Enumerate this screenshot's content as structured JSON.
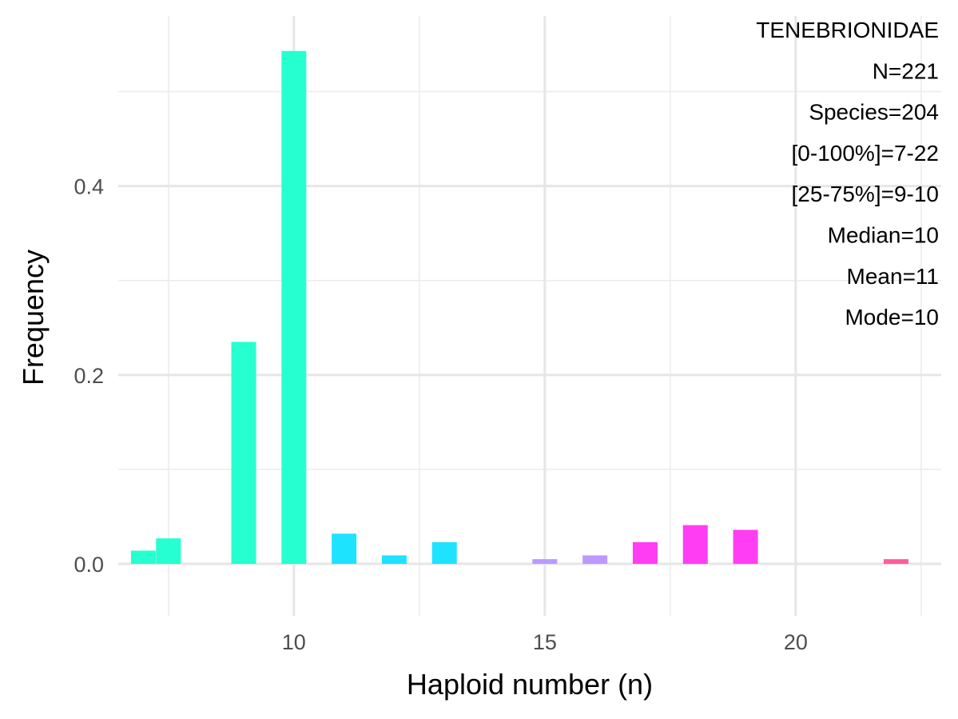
{
  "chart_data": {
    "type": "bar",
    "title": "",
    "xlabel": "Haploid number (n)",
    "ylabel": "Frequency",
    "xlim": [
      6.5,
      22.9
    ],
    "ylim": [
      -0.055,
      0.58
    ],
    "x_ticks": [
      10,
      15,
      20
    ],
    "x_tick_labels": [
      "10",
      "15",
      "20"
    ],
    "y_ticks": [
      0.0,
      0.2,
      0.4
    ],
    "y_tick_labels": [
      "0.0",
      "0.2",
      "0.4"
    ],
    "x_minor_gridlines": [
      7.5,
      12.5,
      17.5,
      22.5
    ],
    "y_minor_gridlines": [
      0.1,
      0.3,
      0.5
    ],
    "grid": true,
    "bars": [
      {
        "x": 7.0,
        "value": 0.014,
        "color": "#26ffcf"
      },
      {
        "x": 7.5,
        "value": 0.027,
        "color": "#26ffcf"
      },
      {
        "x": 9.0,
        "value": 0.235,
        "color": "#26ffcf"
      },
      {
        "x": 10.0,
        "value": 0.543,
        "color": "#26ffcf"
      },
      {
        "x": 11.0,
        "value": 0.032,
        "color": "#1ee3ff"
      },
      {
        "x": 12.0,
        "value": 0.009,
        "color": "#1ee3ff"
      },
      {
        "x": 13.0,
        "value": 0.023,
        "color": "#1ee3ff"
      },
      {
        "x": 15.0,
        "value": 0.005,
        "color": "#bb99ff"
      },
      {
        "x": 16.0,
        "value": 0.009,
        "color": "#bb99ff"
      },
      {
        "x": 17.0,
        "value": 0.023,
        "color": "#ff3df2"
      },
      {
        "x": 18.0,
        "value": 0.041,
        "color": "#ff3df2"
      },
      {
        "x": 19.0,
        "value": 0.036,
        "color": "#ff3df2"
      },
      {
        "x": 22.0,
        "value": 0.005,
        "color": "#ff5c9d"
      }
    ],
    "annotations": [
      "TENEBRIONIDAE",
      "N=221",
      "Species=204",
      "[0-100%]=7-22",
      "[25-75%]=9-10",
      "Median=10",
      "Mean=11",
      "Mode=10"
    ],
    "annotation_placement": "top-right"
  }
}
